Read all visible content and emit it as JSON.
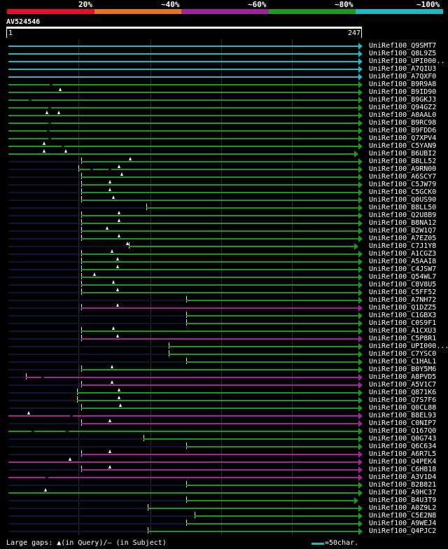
{
  "query": {
    "name": "AV524546",
    "start": "1",
    "end": "247"
  },
  "scale": [
    {
      "label": "20%",
      "color": "#e0102b"
    },
    {
      "label": "~40%",
      "color": "#e8741c"
    },
    {
      "label": "~60%",
      "color": "#a0249a"
    },
    {
      "label": "~80%",
      "color": "#1d9a1d"
    },
    {
      "label": "~100%",
      "color": "#1ebac8"
    }
  ],
  "colors": {
    "cyan": "#1ebac8",
    "green": "#1d9a1d",
    "purple": "#a0249a",
    "dark": "#101438",
    "grid": "#2e2e2e"
  },
  "footer": {
    "legend_text": "Large gaps: ▲(in Query)/— (in Subject)",
    "scale_text": "=50char."
  },
  "hits": [
    {
      "name": "UniRef100_Q9SMT7",
      "color": "cyan",
      "start": 1,
      "tip": "arrow"
    },
    {
      "name": "UniRef100_Q8L9Z5",
      "color": "cyan",
      "start": 1,
      "tip": "arrow"
    },
    {
      "name": "UniRef100_UPI000..",
      "color": "cyan",
      "start": 1,
      "tip": "arrow"
    },
    {
      "name": "UniRef100_A7QIU3",
      "color": "cyan",
      "start": 1,
      "tip": "arrow"
    },
    {
      "name": "UniRef100_A7QXF0",
      "color": "cyan",
      "start": 1,
      "tip": "arrow"
    },
    {
      "name": "UniRef100_B9R9A8",
      "color": "green",
      "start": 1,
      "tip": "arrow",
      "blips": [
        30
      ]
    },
    {
      "name": "UniRef100_B9ID90",
      "color": "green",
      "start": 1,
      "tip": "arrow",
      "marks": [
        37
      ]
    },
    {
      "name": "UniRef100_B9GKJ3",
      "color": "green",
      "start": 1,
      "tip": "arrow",
      "blips": [
        15
      ]
    },
    {
      "name": "UniRef100_Q94GZ2",
      "color": "green",
      "start": 1,
      "tip": "arrow",
      "blips": [
        29
      ]
    },
    {
      "name": "UniRef100_A0AAL0",
      "color": "green",
      "start": 1,
      "tip": "arrow",
      "marks": [
        28,
        36
      ]
    },
    {
      "name": "UniRef100_B9RC98",
      "color": "green",
      "start": 1,
      "tip": "arrow",
      "blips": [
        29
      ]
    },
    {
      "name": "UniRef100_B9FDD6",
      "color": "green",
      "start": 1,
      "tip": "arrow",
      "blips": [
        28
      ]
    },
    {
      "name": "UniRef100_Q7XPV4",
      "color": "green",
      "start": 1,
      "tip": "arrow",
      "blips": [
        29
      ]
    },
    {
      "name": "UniRef100_C5YAN9",
      "color": "green",
      "start": 1,
      "tip": "arrow",
      "marks": [
        26
      ],
      "blips": [
        38
      ]
    },
    {
      "name": "UniRef100_B6UBI2",
      "color": "green",
      "start": 1,
      "tip": "flag",
      "marks": [
        26,
        41
      ],
      "end": 244
    },
    {
      "name": "UniRef100_B8LL52",
      "color": "green",
      "start": 52,
      "tip": "arrow",
      "marks": [
        86
      ]
    },
    {
      "name": "UniRef100_A9RN00",
      "color": "green",
      "start": 50,
      "tip": "arrow",
      "marks": [
        78
      ],
      "blips": [
        58,
        71
      ]
    },
    {
      "name": "UniRef100_A6SCY7",
      "color": "green",
      "start": 52,
      "tip": "arrow",
      "marks": [
        80
      ]
    },
    {
      "name": "UniRef100_C5JW79",
      "color": "green",
      "start": 52,
      "tip": "arrow",
      "marks": [
        72
      ]
    },
    {
      "name": "UniRef100_C5GCK0",
      "color": "green",
      "start": 52,
      "tip": "arrow",
      "marks": [
        72
      ]
    },
    {
      "name": "UniRef100_Q0US90",
      "color": "green",
      "start": 52,
      "tip": "arrow",
      "marks": [
        74
      ]
    },
    {
      "name": "UniRef100_B8LL50",
      "color": "green",
      "start": 97,
      "tip": "arrow"
    },
    {
      "name": "UniRef100_Q2U8B9",
      "color": "green",
      "start": 52,
      "tip": "arrow",
      "marks": [
        78
      ]
    },
    {
      "name": "UniRef100_B8NA12",
      "color": "green",
      "start": 52,
      "tip": "arrow",
      "marks": [
        78
      ]
    },
    {
      "name": "UniRef100_B2W1Q7",
      "color": "green",
      "start": 52,
      "tip": "arrow",
      "marks": [
        70
      ]
    },
    {
      "name": "UniRef100_A7EZ05",
      "color": "green",
      "start": 52,
      "tip": "arrow",
      "marks": [
        78
      ]
    },
    {
      "name": "UniRef100_C7J1Y8",
      "color": "green",
      "start": 85,
      "tip": "flag",
      "marks": [
        84
      ],
      "end": 244
    },
    {
      "name": "UniRef100_A1CGZ3",
      "color": "green",
      "start": 52,
      "tip": "arrow",
      "marks": [
        73
      ]
    },
    {
      "name": "UniRef100_A5AAI8",
      "color": "green",
      "start": 52,
      "tip": "arrow",
      "marks": [
        77
      ]
    },
    {
      "name": "UniRef100_C4JSW7",
      "color": "green",
      "start": 52,
      "tip": "arrow",
      "marks": [
        77
      ]
    },
    {
      "name": "UniRef100_Q54WL7",
      "color": "green",
      "start": 52,
      "tip": "arrow",
      "marks": [
        61
      ]
    },
    {
      "name": "UniRef100_C8V8U5",
      "color": "green",
      "start": 52,
      "tip": "arrow",
      "marks": [
        74
      ]
    },
    {
      "name": "UniRef100_C5FF52",
      "color": "green",
      "start": 52,
      "tip": "arrow",
      "marks": [
        77
      ]
    },
    {
      "name": "UniRef100_A7NH72",
      "color": "green",
      "start": 125,
      "tip": "arrow"
    },
    {
      "name": "UniRef100_Q1DZZ5",
      "color": "purple",
      "start": 52,
      "tip": "arrow",
      "marks": [
        77
      ]
    },
    {
      "name": "UniRef100_C1GBX3",
      "color": "green",
      "start": 125,
      "tip": "arrow"
    },
    {
      "name": "UniRef100_C0S9F1",
      "color": "green",
      "start": 125,
      "tip": "arrow"
    },
    {
      "name": "UniRef100_A1CXU3",
      "color": "green",
      "start": 52,
      "tip": "arrow",
      "marks": [
        74
      ]
    },
    {
      "name": "UniRef100_C5P8R1",
      "color": "purple",
      "start": 52,
      "tip": "arrow",
      "marks": [
        77
      ]
    },
    {
      "name": "UniRef100_UPI000...",
      "color": "green",
      "start": 113,
      "tip": "arrow"
    },
    {
      "name": "UniRef100_C7YSC0",
      "color": "green",
      "start": 113,
      "tip": "arrow"
    },
    {
      "name": "UniRef100_C1HAL1",
      "color": "green",
      "start": 125,
      "tip": "arrow"
    },
    {
      "name": "UniRef100_B0Y5M6",
      "color": "green",
      "start": 52,
      "tip": "arrow",
      "marks": [
        73
      ]
    },
    {
      "name": "UniRef100_A8PVD5",
      "color": "purple",
      "start": 13,
      "tip": "arrow",
      "blips": [
        24
      ]
    },
    {
      "name": "UniRef100_A5V1C7",
      "color": "purple",
      "start": 52,
      "tip": "arrow",
      "marks": [
        73
      ]
    },
    {
      "name": "UniRef100_Q871K6",
      "color": "green",
      "start": 49,
      "tip": "arrow",
      "marks": [
        78
      ]
    },
    {
      "name": "UniRef100_Q7S7F6",
      "color": "green",
      "start": 49,
      "tip": "arrow",
      "marks": [
        78
      ]
    },
    {
      "name": "UniRef100_Q0CL88",
      "color": "green",
      "start": 52,
      "tip": "arrow",
      "marks": [
        79
      ]
    },
    {
      "name": "UniRef100_B8EL93",
      "color": "purple",
      "start": 1,
      "tip": "arrow",
      "marks": [
        15
      ],
      "blips": [
        44
      ]
    },
    {
      "name": "UniRef100_C0NIP7",
      "color": "purple",
      "start": 52,
      "tip": "arrow",
      "marks": [
        72
      ]
    },
    {
      "name": "UniRef100_Q167Q0",
      "color": "green",
      "start": 1,
      "tip": "arrow",
      "blips": [
        17,
        41
      ]
    },
    {
      "name": "UniRef100_Q0G743",
      "color": "green",
      "start": 95,
      "tip": "arrow"
    },
    {
      "name": "UniRef100_Q6C634",
      "color": "green",
      "start": 125,
      "tip": "arrow"
    },
    {
      "name": "UniRef100_A6R7L5",
      "color": "purple",
      "start": 52,
      "tip": "arrow",
      "marks": [
        72
      ]
    },
    {
      "name": "UniRef100_Q4PEK4",
      "color": "purple",
      "start": 1,
      "tip": "arrow",
      "marks": [
        44
      ]
    },
    {
      "name": "UniRef100_C6H818",
      "color": "purple",
      "start": 52,
      "tip": "arrow",
      "marks": [
        72
      ]
    },
    {
      "name": "UniRef100_A3V1D4",
      "color": "purple",
      "start": 1,
      "tip": "arrow",
      "blips": [
        27
      ]
    },
    {
      "name": "UniRef100_B2B821",
      "color": "green",
      "start": 125,
      "tip": "arrow"
    },
    {
      "name": "UniRef100_A9HC37",
      "color": "green",
      "start": 1,
      "tip": "arrow",
      "marks": [
        27
      ]
    },
    {
      "name": "UniRef100_B4U3T9",
      "color": "green",
      "start": 125,
      "tip": "flag",
      "end": 244
    },
    {
      "name": "UniRef100_A0Z9L2",
      "color": "green",
      "start": 98,
      "tip": "arrow"
    },
    {
      "name": "UniRef100_C5E2N8",
      "color": "green",
      "start": 131,
      "tip": "arrow"
    },
    {
      "name": "UniRef100_A9WEJ4",
      "color": "green",
      "start": 125,
      "tip": "arrow"
    },
    {
      "name": "UniRef100_Q4PJC2",
      "color": "green",
      "start": 98,
      "tip": "arrow"
    }
  ]
}
